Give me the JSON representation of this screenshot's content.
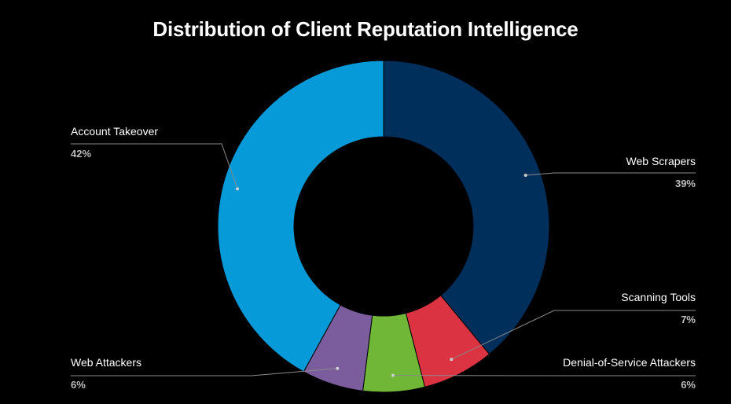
{
  "chart_data": {
    "type": "pie",
    "title": "Distribution of Client Reputation Intelligence",
    "donut": true,
    "slices": [
      {
        "label": "Web Scrapers",
        "value": 39,
        "pct_label": "39%",
        "color": "#012f5c"
      },
      {
        "label": "Scanning Tools",
        "value": 7,
        "pct_label": "7%",
        "color": "#db3341"
      },
      {
        "label": "Denial-of-Service Attackers",
        "value": 6,
        "pct_label": "6%",
        "color": "#70b737"
      },
      {
        "label": "Web Attackers",
        "value": 6,
        "pct_label": "6%",
        "color": "#7b5c9c"
      },
      {
        "label": "Account Takeover",
        "value": 42,
        "pct_label": "42%",
        "color": "#069ad8"
      }
    ],
    "legend": "none"
  }
}
